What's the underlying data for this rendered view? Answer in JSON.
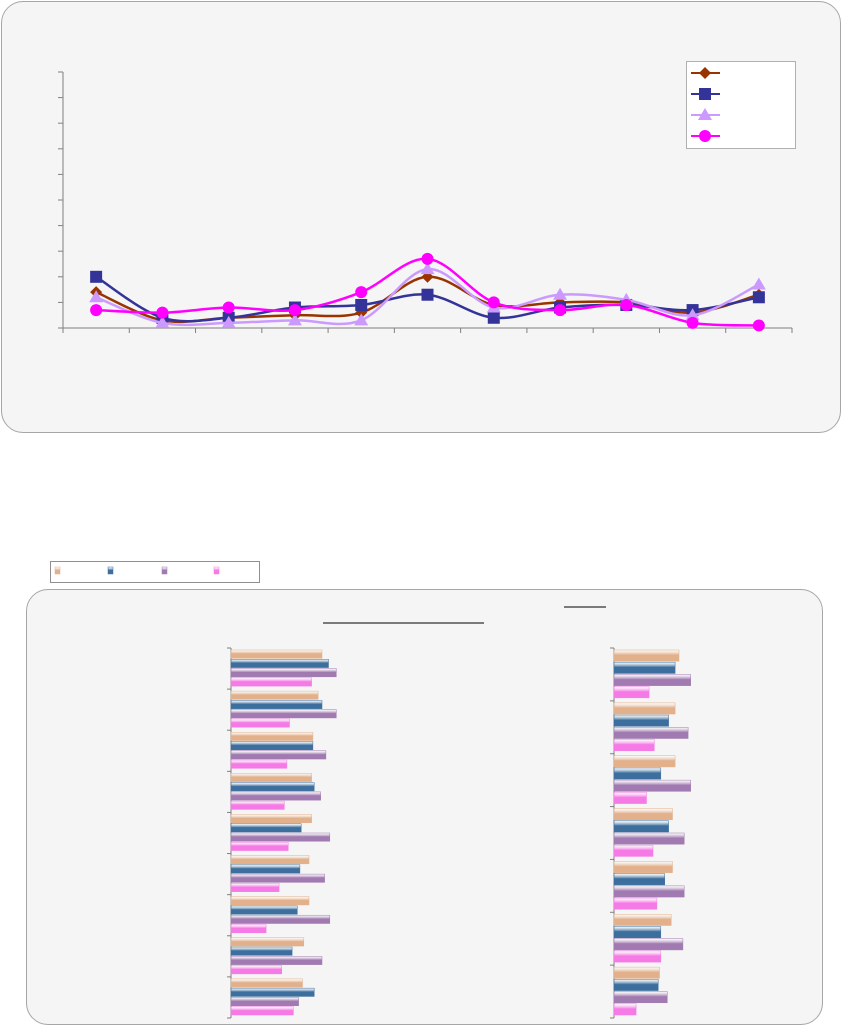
{
  "chart_data": [
    {
      "type": "line",
      "title": "",
      "xlabel": "",
      "ylabel": "",
      "ylim": [
        0,
        10
      ],
      "grid": false,
      "legend_position": "top-right",
      "x": [
        1,
        2,
        3,
        4,
        5,
        6,
        7,
        8,
        9,
        10,
        11
      ],
      "series": [
        {
          "marker": "diamond",
          "color": "#993300",
          "values": [
            1.4,
            0.3,
            0.4,
            0.5,
            0.6,
            2.0,
            0.9,
            1.0,
            1.0,
            0.6,
            1.3
          ]
        },
        {
          "marker": "square",
          "color": "#333399",
          "values": [
            2.0,
            0.4,
            0.4,
            0.8,
            0.9,
            1.3,
            0.4,
            0.8,
            0.9,
            0.7,
            1.2
          ]
        },
        {
          "marker": "triangle",
          "color": "#cc99ff",
          "values": [
            1.2,
            0.2,
            0.2,
            0.3,
            0.3,
            2.3,
            0.8,
            1.3,
            1.1,
            0.5,
            1.7
          ]
        },
        {
          "marker": "circle",
          "color": "#ff00ff",
          "values": [
            0.7,
            0.6,
            0.8,
            0.7,
            1.4,
            2.7,
            1.0,
            0.7,
            0.9,
            0.2,
            0.1
          ]
        }
      ]
    },
    {
      "type": "bar",
      "orientation": "horizontal",
      "title": "",
      "legend_position": "top-left",
      "xlim": [
        0,
        10
      ],
      "categories": [
        "",
        "",
        "",
        "",
        "",
        "",
        "",
        "",
        ""
      ],
      "series": [
        {
          "color": "#e2b08a",
          "values": [
            7.0,
            6.7,
            6.3,
            6.2,
            6.2,
            6.0,
            6.0,
            5.6,
            5.5
          ]
        },
        {
          "color": "#3d6f9e",
          "values": [
            7.5,
            7.0,
            6.3,
            6.4,
            5.4,
            5.3,
            5.1,
            4.7,
            6.4
          ]
        },
        {
          "color": "#a07ab0",
          "values": [
            8.1,
            8.1,
            7.3,
            6.9,
            7.6,
            7.2,
            7.6,
            7.0,
            5.2
          ]
        },
        {
          "color": "#f57ae6",
          "values": [
            6.2,
            4.5,
            4.3,
            4.1,
            4.4,
            3.7,
            2.7,
            3.9,
            4.8
          ]
        }
      ]
    },
    {
      "type": "bar",
      "orientation": "horizontal",
      "title": "",
      "xlim": [
        0,
        10
      ],
      "categories": [
        "",
        "",
        "",
        "",
        "",
        "",
        ""
      ],
      "series": [
        {
          "color": "#e2b08a",
          "values": [
            5.0,
            4.7,
            4.7,
            4.5,
            4.5,
            4.4,
            3.5
          ]
        },
        {
          "color": "#3d6f9e",
          "values": [
            4.7,
            4.2,
            3.6,
            4.2,
            3.9,
            3.6,
            3.4
          ]
        },
        {
          "color": "#a07ab0",
          "values": [
            5.9,
            5.7,
            5.9,
            5.4,
            5.4,
            5.3,
            4.1
          ]
        },
        {
          "color": "#f57ae6",
          "values": [
            2.7,
            3.1,
            2.5,
            3.0,
            3.3,
            3.6,
            1.7
          ]
        }
      ]
    }
  ]
}
